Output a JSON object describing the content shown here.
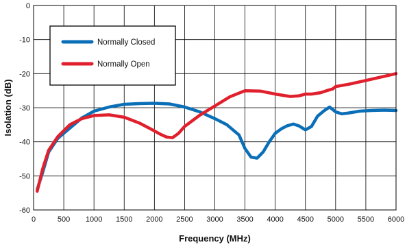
{
  "chart_data": {
    "type": "line",
    "title": "",
    "xlabel": "Frequency (MHz)",
    "ylabel": "Isolation (dB)",
    "xlim": [
      0,
      6000
    ],
    "ylim": [
      -60,
      0
    ],
    "xticks": [
      0,
      500,
      1000,
      1500,
      2000,
      2500,
      3000,
      3500,
      4000,
      4500,
      5000,
      5500,
      6000
    ],
    "yticks": [
      0,
      -10,
      -20,
      -30,
      -40,
      -50,
      -60
    ],
    "grid": true,
    "legend": {
      "placement": "top-left"
    },
    "series": [
      {
        "name": "Normally Closed",
        "color": "#0b6fb8",
        "x": [
          60,
          150,
          250,
          400,
          600,
          800,
          1000,
          1250,
          1500,
          1750,
          2000,
          2250,
          2500,
          2750,
          3000,
          3200,
          3400,
          3500,
          3600,
          3700,
          3800,
          3900,
          4000,
          4100,
          4200,
          4300,
          4400,
          4500,
          4600,
          4700,
          4800,
          4900,
          5000,
          5100,
          5200,
          5400,
          5600,
          5800,
          6000
        ],
        "y": [
          -54,
          -49,
          -43,
          -39,
          -36,
          -33,
          -31,
          -29.8,
          -29,
          -28.8,
          -28.7,
          -28.9,
          -29.8,
          -31.2,
          -33.2,
          -35,
          -38,
          -42,
          -44.5,
          -44.8,
          -43,
          -40,
          -37.5,
          -36.2,
          -35.3,
          -34.8,
          -35.4,
          -36.5,
          -35.5,
          -32.5,
          -31,
          -29.8,
          -31.2,
          -31.8,
          -31.6,
          -31,
          -30.8,
          -30.7,
          -30.8
        ]
      },
      {
        "name": "Normally Open",
        "color": "#e0202d",
        "x": [
          60,
          150,
          250,
          400,
          600,
          800,
          1000,
          1250,
          1500,
          1750,
          2000,
          2100,
          2200,
          2300,
          2400,
          2500,
          2750,
          3000,
          3250,
          3500,
          3750,
          4000,
          4250,
          4400,
          4500,
          4600,
          4750,
          4850,
          4950,
          5000,
          5250,
          5500,
          5750,
          6000
        ],
        "y": [
          -54.5,
          -48,
          -42.5,
          -38.5,
          -35,
          -33.2,
          -32.3,
          -32.1,
          -32.8,
          -34.5,
          -36.8,
          -37.8,
          -38.6,
          -38.8,
          -37.5,
          -35.5,
          -32.2,
          -29.5,
          -26.8,
          -25,
          -25.1,
          -26,
          -26.7,
          -26.5,
          -26,
          -26,
          -25.6,
          -25,
          -24.5,
          -23.8,
          -23,
          -22,
          -21,
          -20
        ]
      }
    ]
  }
}
